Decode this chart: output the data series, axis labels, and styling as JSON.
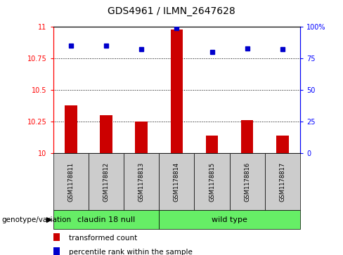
{
  "title": "GDS4961 / ILMN_2647628",
  "samples": [
    "GSM1178811",
    "GSM1178812",
    "GSM1178813",
    "GSM1178814",
    "GSM1178815",
    "GSM1178816",
    "GSM1178817"
  ],
  "transformed_count": [
    10.38,
    10.3,
    10.25,
    10.98,
    10.14,
    10.26,
    10.14
  ],
  "percentile_rank": [
    85,
    85,
    82,
    99,
    80,
    83,
    82
  ],
  "ylim_left": [
    10,
    11
  ],
  "ylim_right": [
    0,
    100
  ],
  "yticks_left": [
    10,
    10.25,
    10.5,
    10.75,
    11
  ],
  "yticks_right": [
    0,
    25,
    50,
    75,
    100
  ],
  "bar_color": "#cc0000",
  "dot_color": "#0000cc",
  "group1_label": "claudin 18 null",
  "group2_label": "wild type",
  "group1_indices": [
    0,
    1,
    2
  ],
  "group2_indices": [
    3,
    4,
    5,
    6
  ],
  "group_bg_color": "#66ee66",
  "sample_bg_color": "#cccccc",
  "legend_bar_label": "transformed count",
  "legend_dot_label": "percentile rank within the sample",
  "genotype_label": "genotype/variation",
  "yline_ticks": [
    10.25,
    10.5,
    10.75
  ],
  "right_tick_labels": [
    "0",
    "25",
    "50",
    "75",
    "100%"
  ],
  "left_tick_labels": [
    "10",
    "10.25",
    "10.5",
    "10.75",
    "11"
  ],
  "bar_width": 0.35,
  "fig_width": 4.88,
  "fig_height": 3.63,
  "fig_dpi": 100
}
